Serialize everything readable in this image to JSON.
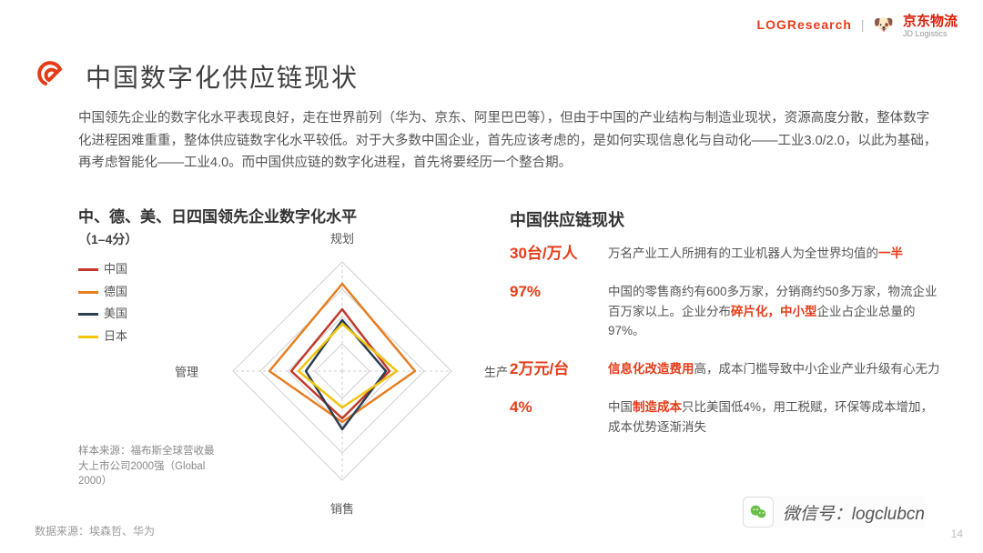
{
  "logos": {
    "log_research": "LOGResearch",
    "jd_cn": "京东物流",
    "jd_en": "JD Logistics"
  },
  "title": "中国数字化供应链现状",
  "intro": "中国领先企业的数字化水平表现良好，走在世界前列（华为、京东、阿里巴巴等），但由于中国的产业结构与制造业现状，资源高度分散，整体数字化进程困难重重，整体供应链数字化水平较低。对于大多数中国企业，首先应该考虑的，是如何实现信息化与自动化——工业3.0/2.0，以此为基础，再考虑智能化——工业4.0。而中国供应链的数字化进程，首先将要经历一个整合期。",
  "radar": {
    "title": "中、德、美、日四国领先企业数字化水平",
    "subtitle": "（1–4分）",
    "axes": [
      "规划",
      "生产",
      "销售",
      "管理"
    ],
    "scale_min": 1,
    "scale_max": 4,
    "rings": 4,
    "grid_color": "#d0d0d0",
    "axis_color": "#cfcfcf",
    "series": [
      {
        "name": "中国",
        "color": "#c0392b",
        "values": [
          2.7,
          2.3,
          2.3,
          2.4
        ]
      },
      {
        "name": "德国",
        "color": "#e67e22",
        "values": [
          3.4,
          3.0,
          2.4,
          3.0
        ]
      },
      {
        "name": "美国",
        "color": "#2c3e50",
        "values": [
          2.4,
          2.2,
          2.6,
          2.0
        ]
      },
      {
        "name": "日本",
        "color": "#f1c40f",
        "values": [
          2.3,
          2.5,
          2.0,
          2.2
        ]
      }
    ],
    "sample_note": "样本来源：福布斯全球营收最大上市公司2000强（Global 2000）"
  },
  "right": {
    "title": "中国供应链现状",
    "rows": [
      {
        "key": "30台/万人",
        "desc_pre": "万名产业工人所拥有的工业机器人为全世界均值的",
        "hl": "一半",
        "desc_post": ""
      },
      {
        "key": "97%",
        "desc_pre": "中国的零售商约有600多万家，分销商约50多万家，物流企业百万家以上。企业分布",
        "hl": "碎片化，中小型",
        "desc_post": "企业占企业总量的97%。"
      },
      {
        "key": "2万元/台",
        "desc_pre": "",
        "hl": "信息化改造费用",
        "desc_post": "高，成本门槛导致中小企业产业升级有心无力"
      },
      {
        "key": "4%",
        "desc_pre": "中国",
        "hl": "制造成本",
        "desc_post": "只比美国低4%，用工税赋，环保等成本增加，成本优势逐渐消失"
      }
    ]
  },
  "source": "数据来源：埃森哲、华为",
  "page": "14",
  "wechat": {
    "label": "微信号：",
    "id": "logclubcn"
  },
  "colors": {
    "accent": "#e63b17",
    "text": "#555555",
    "title": "#404040",
    "bg": "#ffffff"
  }
}
